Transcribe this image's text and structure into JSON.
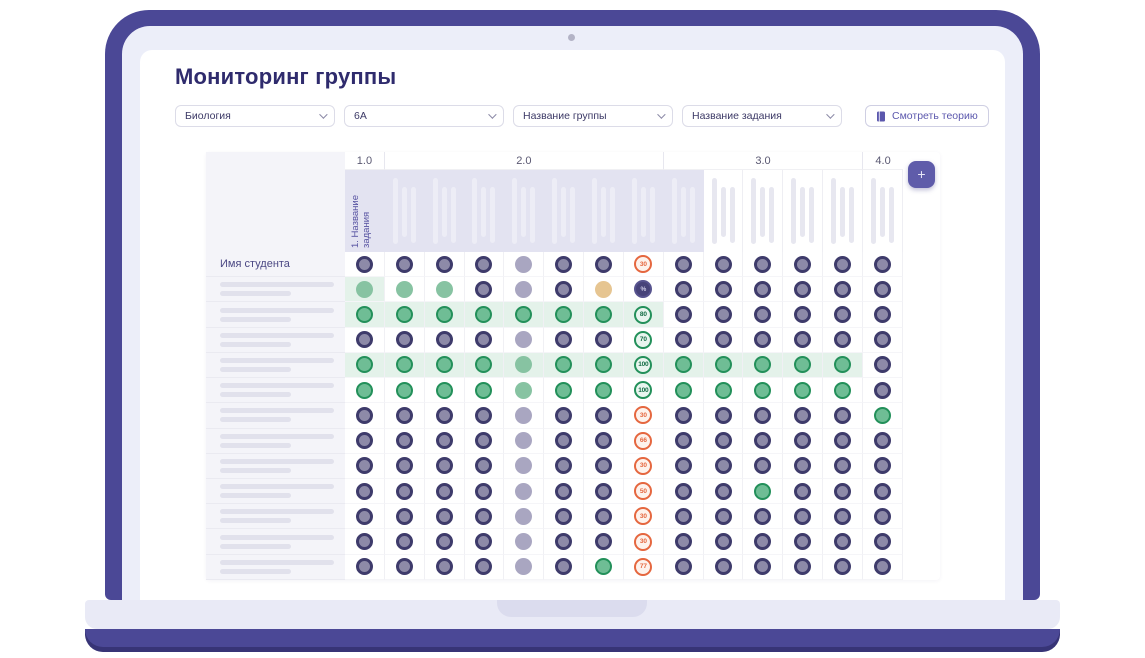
{
  "page": {
    "title": "Мониторинг группы"
  },
  "filters": [
    {
      "value": "Биология"
    },
    {
      "value": "6А"
    },
    {
      "value": "Название группы"
    },
    {
      "value": "Название задания"
    }
  ],
  "theory_button": {
    "icon": "book-icon",
    "label": "Смотреть теорию"
  },
  "add_button": {
    "label": "+"
  },
  "table": {
    "name_column_header": "Имя студента",
    "groups": [
      {
        "label": "1.0",
        "span": 1
      },
      {
        "label": "2.0",
        "span": 7
      },
      {
        "label": "3.0",
        "span": 5
      },
      {
        "label": "4.0",
        "span": 1
      }
    ],
    "subheader": {
      "first_task_label": "1. Название задания",
      "shaded_cols": 9
    },
    "rows": [
      {
        "name": "Имя студента",
        "highlight": 0,
        "cells": [
          "navy",
          "navy",
          "navy",
          "navy",
          "gray",
          "navy",
          "navy"
        ],
        "badge": {
          "text": "30",
          "tone": "orange"
        },
        "cells2": [
          "navy",
          "navy",
          "navy",
          "navy",
          "navy",
          "navy"
        ]
      },
      {
        "name": null,
        "highlight": 1,
        "cells": [
          "green_soft",
          "green_soft",
          "green_soft",
          "navy",
          "gray",
          "navy",
          "tan"
        ],
        "badge": {
          "text": "%",
          "tone": "navy"
        },
        "cells2": [
          "navy",
          "navy",
          "navy",
          "navy",
          "navy",
          "navy"
        ]
      },
      {
        "name": null,
        "highlight": 8,
        "cells": [
          "green",
          "green",
          "green",
          "green",
          "green",
          "green",
          "green"
        ],
        "badge": {
          "text": "80",
          "tone": "green"
        },
        "cells2": [
          "navy",
          "navy",
          "navy",
          "navy",
          "navy",
          "navy"
        ]
      },
      {
        "name": null,
        "highlight": 0,
        "cells": [
          "navy",
          "navy",
          "navy",
          "navy",
          "gray",
          "navy",
          "navy"
        ],
        "badge": {
          "text": "70",
          "tone": "green"
        },
        "cells2": [
          "navy",
          "navy",
          "navy",
          "navy",
          "navy",
          "navy"
        ]
      },
      {
        "name": null,
        "highlight": 13,
        "cells": [
          "green",
          "green",
          "green",
          "green",
          "green_soft",
          "green",
          "green"
        ],
        "badge": {
          "text": "100",
          "tone": "green"
        },
        "cells2": [
          "green",
          "green",
          "green",
          "green",
          "green",
          "navy"
        ]
      },
      {
        "name": null,
        "highlight": 0,
        "cells": [
          "green",
          "green",
          "green",
          "green",
          "green_soft",
          "green",
          "green"
        ],
        "badge": {
          "text": "100",
          "tone": "green"
        },
        "cells2": [
          "green",
          "green",
          "green",
          "green",
          "green",
          "navy"
        ]
      },
      {
        "name": null,
        "highlight": 0,
        "cells": [
          "navy",
          "navy",
          "navy",
          "navy",
          "gray",
          "navy",
          "navy"
        ],
        "badge": {
          "text": "30",
          "tone": "orange"
        },
        "cells2": [
          "navy",
          "navy",
          "navy",
          "navy",
          "navy",
          "green"
        ]
      },
      {
        "name": null,
        "highlight": 0,
        "cells": [
          "navy",
          "navy",
          "navy",
          "navy",
          "gray",
          "navy",
          "navy"
        ],
        "badge": {
          "text": "66",
          "tone": "orange"
        },
        "cells2": [
          "navy",
          "navy",
          "navy",
          "navy",
          "navy",
          "navy"
        ]
      },
      {
        "name": null,
        "highlight": 0,
        "cells": [
          "navy",
          "navy",
          "navy",
          "navy",
          "gray",
          "navy",
          "navy"
        ],
        "badge": {
          "text": "30",
          "tone": "orange"
        },
        "cells2": [
          "navy",
          "navy",
          "navy",
          "navy",
          "navy",
          "navy"
        ]
      },
      {
        "name": null,
        "highlight": 0,
        "cells": [
          "navy",
          "navy",
          "navy",
          "navy",
          "gray",
          "navy",
          "navy"
        ],
        "badge": {
          "text": "50",
          "tone": "orange"
        },
        "cells2": [
          "navy",
          "navy",
          "green",
          "navy",
          "navy",
          "navy"
        ]
      },
      {
        "name": null,
        "highlight": 0,
        "cells": [
          "navy",
          "navy",
          "navy",
          "navy",
          "gray",
          "navy",
          "navy"
        ],
        "badge": {
          "text": "30",
          "tone": "orange"
        },
        "cells2": [
          "navy",
          "navy",
          "navy",
          "navy",
          "navy",
          "navy"
        ]
      },
      {
        "name": null,
        "highlight": 0,
        "cells": [
          "navy",
          "navy",
          "navy",
          "navy",
          "gray",
          "navy",
          "navy"
        ],
        "badge": {
          "text": "30",
          "tone": "orange"
        },
        "cells2": [
          "navy",
          "navy",
          "navy",
          "navy",
          "navy",
          "navy"
        ]
      },
      {
        "name": null,
        "highlight": 0,
        "cells": [
          "navy",
          "navy",
          "navy",
          "navy",
          "gray",
          "navy",
          "green"
        ],
        "badge": {
          "text": "77",
          "tone": "orange"
        },
        "cells2": [
          "navy",
          "navy",
          "navy",
          "navy",
          "navy",
          "navy"
        ]
      }
    ]
  },
  "colors": {
    "frame": "#4b4896",
    "screen": "#eceef9",
    "accent": "#5f5caa",
    "title": "#2f2b6d",
    "subheader_shade": "#e3e3f1",
    "row_highlight": "#e4f2ea",
    "dot_navy_fill": "#8d8aa8",
    "dot_navy_border": "#3e3b6b",
    "dot_gray": "#a9a6c1",
    "dot_green_fill": "#6fbd95",
    "dot_green_border": "#23905a",
    "dot_green_soft": "#87c3a2",
    "dot_tan": "#e6c591",
    "badge_orange": "#e5673f",
    "badge_navy_bg": "#474379"
  }
}
